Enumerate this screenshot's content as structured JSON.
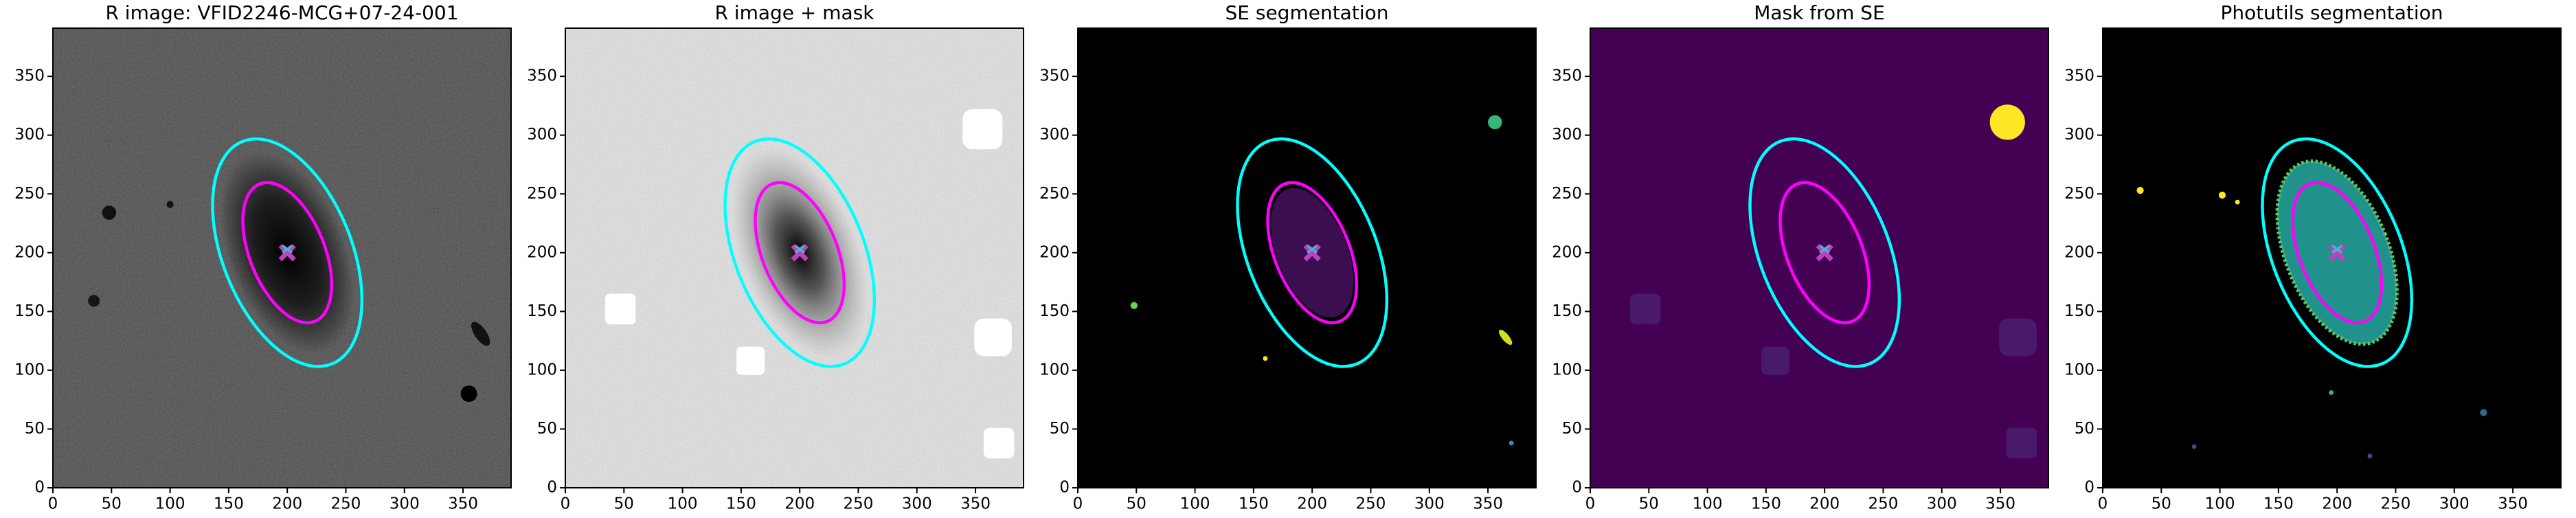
{
  "chart_data": [
    {
      "type": "image",
      "title": "R image: VFID2246-MCG+07-24-001",
      "xlim": [
        0,
        391
      ],
      "ylim": [
        0,
        391
      ],
      "xticks": [
        0,
        50,
        100,
        150,
        200,
        250,
        300,
        350
      ],
      "yticks": [
        0,
        50,
        100,
        150,
        200,
        250,
        300,
        350
      ]
    },
    {
      "type": "image",
      "title": "R image + mask",
      "xlim": [
        0,
        391
      ],
      "ylim": [
        0,
        391
      ],
      "xticks": [
        0,
        50,
        100,
        150,
        200,
        250,
        300,
        350
      ],
      "yticks": [
        0,
        50,
        100,
        150,
        200,
        250,
        300,
        350
      ]
    },
    {
      "type": "image",
      "title": "SE segmentation",
      "xlim": [
        0,
        391
      ],
      "ylim": [
        0,
        391
      ],
      "xticks": [
        0,
        50,
        100,
        150,
        200,
        250,
        300,
        350
      ],
      "yticks": [
        0,
        50,
        100,
        150,
        200,
        250,
        300,
        350
      ]
    },
    {
      "type": "image",
      "title": "Mask from SE",
      "xlim": [
        0,
        391
      ],
      "ylim": [
        0,
        391
      ],
      "xticks": [
        0,
        50,
        100,
        150,
        200,
        250,
        300,
        350
      ],
      "yticks": [
        0,
        50,
        100,
        150,
        200,
        250,
        300,
        350
      ]
    },
    {
      "type": "image",
      "title": "Photutils segmentation",
      "xlim": [
        0,
        391
      ],
      "ylim": [
        0,
        391
      ],
      "xticks": [
        0,
        50,
        100,
        150,
        200,
        250,
        300,
        350
      ],
      "yticks": [
        0,
        50,
        100,
        150,
        200,
        250,
        300,
        350
      ]
    }
  ]
}
